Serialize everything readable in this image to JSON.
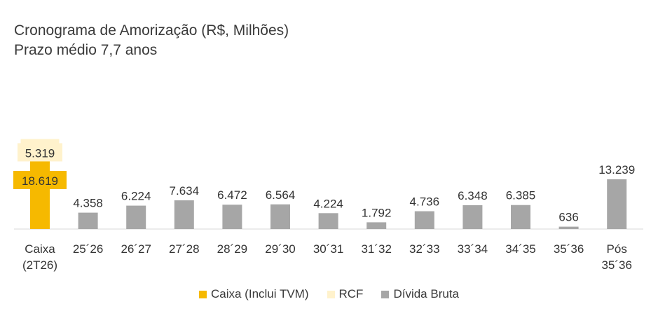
{
  "title_line1": "Cronograma de Amorização (R$, Milhões)",
  "title_line2": "Prazo médio 7,7 anos",
  "colors": {
    "caixa": "#F6B900",
    "rcf": "#FFF2CC",
    "divida": "#A6A6A6",
    "axis": "#D9D9D9",
    "text": "#333333"
  },
  "chart_data": {
    "type": "bar",
    "categories": [
      "Caixa\n(2T26)",
      "25´26",
      "26´27",
      "27´28",
      "28´29",
      "29´30",
      "30´31",
      "31´32",
      "32´33",
      "33´34",
      "34´35",
      "35´36",
      "Pós\n35´36"
    ],
    "series": [
      {
        "name": "Caixa (Inclui TVM)",
        "values": [
          18619,
          null,
          null,
          null,
          null,
          null,
          null,
          null,
          null,
          null,
          null,
          null,
          null
        ]
      },
      {
        "name": "RCF",
        "values": [
          5319,
          null,
          null,
          null,
          null,
          null,
          null,
          null,
          null,
          null,
          null,
          null,
          null
        ]
      },
      {
        "name": "Dívida Bruta",
        "values": [
          null,
          4358,
          6224,
          7634,
          6472,
          6564,
          4224,
          1792,
          4736,
          6348,
          6385,
          636,
          13239
        ]
      }
    ],
    "labels": [
      "18.619",
      "5.319",
      "4.358",
      "6.224",
      "7.634",
      "6.472",
      "6.564",
      "4.224",
      "1.792",
      "4.736",
      "6.348",
      "6.385",
      "636",
      "13.239"
    ],
    "stacked_first_category": true,
    "legend": "bottom",
    "grid": false
  },
  "legend": [
    {
      "label": "Caixa (Inclui TVM)",
      "color": "#F6B900"
    },
    {
      "label": "RCF",
      "color": "#FFF2CC"
    },
    {
      "label": "Dívida Bruta",
      "color": "#A6A6A6"
    }
  ]
}
